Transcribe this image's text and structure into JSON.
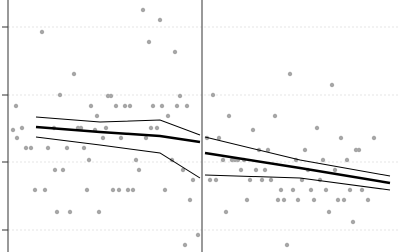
{
  "chart_data": {
    "type": "scatter",
    "xlim": [
      0,
      390
    ],
    "ylim": [
      0,
      252
    ],
    "yticks": [
      22,
      90,
      157,
      225
    ],
    "grid": true,
    "cutoff": 194,
    "point_color": "#a6a6a6",
    "line_color": "#000000",
    "points": {
      "x": [
        8,
        5,
        9,
        14,
        18,
        23,
        27,
        34,
        37,
        40,
        46,
        47,
        49,
        52,
        55,
        59,
        62,
        66,
        70,
        73,
        76,
        79,
        81,
        83,
        87,
        89,
        91,
        95,
        98,
        100,
        103,
        105,
        108,
        111,
        113,
        117,
        120,
        122,
        125,
        128,
        131,
        135,
        138,
        141,
        143,
        145,
        149,
        152,
        154,
        157,
        160,
        164,
        167,
        169,
        172,
        175,
        177,
        179,
        182,
        185,
        190,
        199,
        202,
        205,
        208,
        211,
        215,
        218,
        221,
        224,
        227,
        230,
        233,
        236,
        239,
        242,
        245,
        248,
        251,
        254,
        257,
        260,
        263,
        267,
        270,
        273,
        276,
        279,
        282,
        285,
        288,
        290,
        294,
        297,
        300,
        303,
        306,
        309,
        312,
        315,
        318,
        321,
        324,
        327,
        330,
        333,
        336,
        339,
        342,
        345,
        348,
        351,
        354,
        360,
        366
      ],
      "y": [
        146,
        122,
        114,
        124,
        104,
        104,
        62,
        220,
        62,
        104,
        124,
        82,
        40,
        157,
        82,
        104,
        40,
        178,
        124,
        124,
        104,
        62,
        92,
        146,
        122,
        136,
        40,
        114,
        124,
        156,
        156,
        62,
        146,
        62,
        114,
        146,
        62,
        146,
        62,
        92,
        82,
        242,
        114,
        210,
        124,
        146,
        124,
        232,
        146,
        62,
        136,
        92,
        200,
        146,
        156,
        82,
        7,
        146,
        52,
        72,
        17,
        114,
        72,
        157,
        72,
        114,
        92,
        40,
        136,
        92,
        92,
        92,
        82,
        92,
        52,
        72,
        122,
        82,
        102,
        72,
        82,
        102,
        72,
        136,
        52,
        62,
        52,
        7,
        178,
        62,
        92,
        52,
        72,
        102,
        82,
        62,
        52,
        124,
        72,
        92,
        62,
        40,
        167,
        82,
        52,
        114,
        52,
        92,
        62,
        30,
        102,
        102,
        62,
        52,
        114
      ]
    },
    "fits": [
      {
        "x": [
          28,
          92,
          152,
          192
        ],
        "y": [
          125,
          120,
          116,
          110
        ],
        "upper": [
          135,
          130,
          132,
          117
        ],
        "lower": [
          115,
          107,
          99,
          74
        ]
      },
      {
        "x": [
          197,
          292,
          382
        ],
        "y": [
          99,
          84,
          69
        ],
        "upper": [
          115,
          92,
          76
        ],
        "lower": [
          77,
          74,
          62
        ]
      }
    ]
  }
}
